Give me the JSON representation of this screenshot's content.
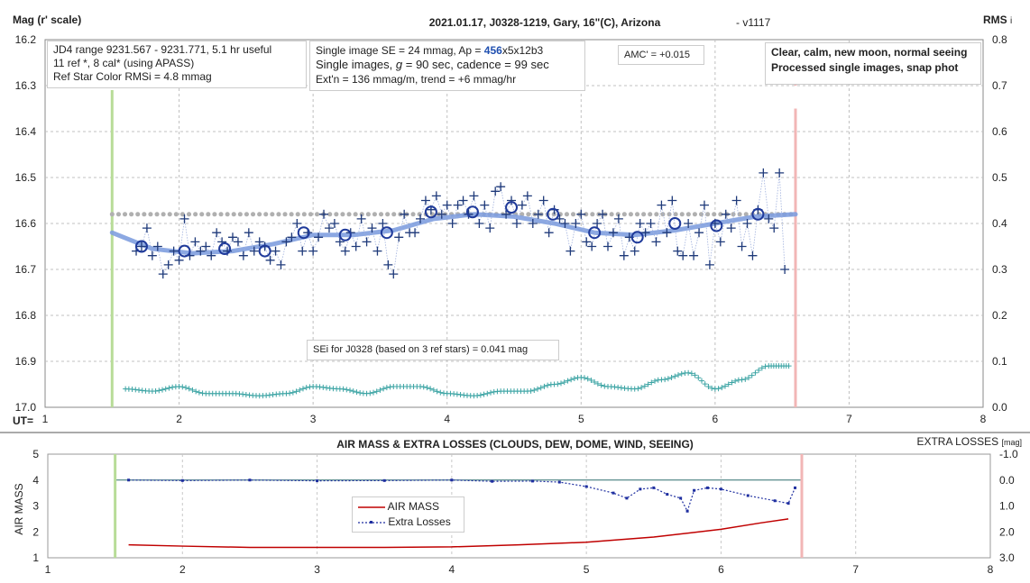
{
  "chart_data": [
    {
      "type": "scatter",
      "title": "2021.01.17, J0328-1219, Gary, 16\"(C), Arizona",
      "version": "- v1117",
      "ylabel": "Mag (r' scale)",
      "y2label": "RMS",
      "y2label_sub": "i",
      "xlabel": "UT=",
      "xlim": [
        1,
        8
      ],
      "ylim": [
        16.2,
        17.0
      ],
      "y2lim": [
        0.0,
        0.8
      ],
      "xticks": [
        "1",
        "2",
        "3",
        "4",
        "5",
        "6",
        "7",
        "8"
      ],
      "yticks": [
        "16.2",
        "16.3",
        "16.4",
        "16.5",
        "16.6",
        "16.7",
        "16.8",
        "16.9",
        "17.0"
      ],
      "y2ticks": [
        "0.8",
        "0.7",
        "0.6",
        "0.5",
        "0.4",
        "0.3",
        "0.2",
        "0.1",
        "0.0"
      ],
      "grid": true,
      "colors": {
        "single": "#1f3a7a",
        "group": "#1f3a9a",
        "smooth": "#7f9fdf",
        "mean": "#b0b0b0",
        "rms": "#3aa3a3",
        "start": "#b8dc98",
        "end": "#f2b6b6"
      },
      "start_marker": 1.5,
      "end_marker": 6.6,
      "mean_mag": 16.58,
      "mean_x": [
        1.5,
        6.6
      ],
      "series": [
        {
          "kind": "single_images",
          "x": [
            1.68,
            1.72,
            1.76,
            1.8,
            1.84,
            1.88,
            1.92,
            1.96,
            2.0,
            2.04,
            2.08,
            2.12,
            2.16,
            2.2,
            2.24,
            2.28,
            2.32,
            2.36,
            2.4,
            2.44,
            2.48,
            2.52,
            2.56,
            2.6,
            2.64,
            2.68,
            2.72,
            2.76,
            2.8,
            2.84,
            2.88,
            2.92,
            2.96,
            3.0,
            3.04,
            3.08,
            3.12,
            3.16,
            3.2,
            3.24,
            3.28,
            3.32,
            3.36,
            3.4,
            3.44,
            3.48,
            3.52,
            3.56,
            3.6,
            3.64,
            3.68,
            3.72,
            3.76,
            3.8,
            3.84,
            3.88,
            3.92,
            3.96,
            4.0,
            4.04,
            4.08,
            4.12,
            4.16,
            4.2,
            4.24,
            4.28,
            4.32,
            4.36,
            4.4,
            4.44,
            4.48,
            4.52,
            4.56,
            4.6,
            4.64,
            4.68,
            4.72,
            4.76,
            4.8,
            4.84,
            4.88,
            4.92,
            4.96,
            5.0,
            5.04,
            5.08,
            5.12,
            5.16,
            5.2,
            5.24,
            5.28,
            5.32,
            5.36,
            5.4,
            5.44,
            5.48,
            5.52,
            5.56,
            5.6,
            5.64,
            5.68,
            5.72,
            5.76,
            5.8,
            5.84,
            5.88,
            5.92,
            5.96,
            6.0,
            6.04,
            6.08,
            6.12,
            6.16,
            6.2,
            6.24,
            6.28,
            6.32,
            6.36,
            6.4,
            6.44,
            6.48,
            6.52
          ],
          "y": [
            16.66,
            16.65,
            16.61,
            16.67,
            16.65,
            16.71,
            16.69,
            16.66,
            16.68,
            16.59,
            16.67,
            16.64,
            16.66,
            16.65,
            16.67,
            16.62,
            16.64,
            16.66,
            16.63,
            16.64,
            16.67,
            16.62,
            16.66,
            16.64,
            16.65,
            16.68,
            16.66,
            16.69,
            16.64,
            16.63,
            16.6,
            16.66,
            16.62,
            16.66,
            16.63,
            16.58,
            16.61,
            16.6,
            16.64,
            16.66,
            16.62,
            16.65,
            16.59,
            16.64,
            16.61,
            16.66,
            16.6,
            16.69,
            16.71,
            16.63,
            16.58,
            16.62,
            16.62,
            16.59,
            16.55,
            16.57,
            16.54,
            16.58,
            16.56,
            16.6,
            16.56,
            16.55,
            16.58,
            16.54,
            16.6,
            16.56,
            16.61,
            16.53,
            16.52,
            16.58,
            16.55,
            16.6,
            16.56,
            16.54,
            16.6,
            16.58,
            16.55,
            16.62,
            16.57,
            16.59,
            16.6,
            16.66,
            16.6,
            16.58,
            16.64,
            16.65,
            16.6,
            16.58,
            16.65,
            16.62,
            16.59,
            16.67,
            16.63,
            16.66,
            16.6,
            16.62,
            16.6,
            16.64,
            16.56,
            16.62,
            16.55,
            16.66,
            16.67,
            16.6,
            16.67,
            16.62,
            16.56,
            16.69,
            16.6,
            16.64,
            16.58,
            16.61,
            16.55,
            16.65,
            16.6,
            16.67,
            16.57,
            16.49,
            16.59,
            16.61,
            16.49,
            16.7
          ]
        },
        {
          "kind": "group_averages",
          "x": [
            1.72,
            2.04,
            2.34,
            2.64,
            2.93,
            3.24,
            3.55,
            3.88,
            4.19,
            4.48,
            4.79,
            5.1,
            5.42,
            5.7,
            6.01,
            6.32
          ],
          "y": [
            16.65,
            16.66,
            16.655,
            16.66,
            16.62,
            16.625,
            16.62,
            16.575,
            16.575,
            16.565,
            16.58,
            16.62,
            16.63,
            16.6,
            16.605,
            16.58
          ]
        },
        {
          "kind": "smooth_fit",
          "x": [
            1.5,
            1.8,
            2.1,
            2.4,
            2.7,
            3.0,
            3.3,
            3.6,
            3.9,
            4.2,
            4.5,
            4.8,
            5.1,
            5.4,
            5.7,
            6.0,
            6.3,
            6.6
          ],
          "y": [
            16.62,
            16.655,
            16.665,
            16.66,
            16.645,
            16.625,
            16.625,
            16.615,
            16.59,
            16.58,
            16.585,
            16.6,
            16.62,
            16.625,
            16.615,
            16.6,
            16.585,
            16.58
          ]
        },
        {
          "kind": "rms",
          "x": [
            1.6,
            1.8,
            2.0,
            2.2,
            2.4,
            2.6,
            2.8,
            3.0,
            3.2,
            3.4,
            3.6,
            3.8,
            4.0,
            4.2,
            4.4,
            4.6,
            4.8,
            5.0,
            5.2,
            5.4,
            5.6,
            5.8,
            6.0,
            6.2,
            6.4,
            6.55
          ],
          "y": [
            0.04,
            0.035,
            0.045,
            0.03,
            0.03,
            0.025,
            0.03,
            0.045,
            0.04,
            0.03,
            0.045,
            0.045,
            0.03,
            0.025,
            0.035,
            0.035,
            0.05,
            0.065,
            0.045,
            0.04,
            0.06,
            0.075,
            0.04,
            0.06,
            0.09,
            0.09
          ]
        }
      ]
    },
    {
      "type": "line",
      "title": "AIR MASS & EXTRA LOSSES (CLOUDS, DEW, DOME, WIND, SEEING)",
      "ylabel": "AIR MASS",
      "y2label": "EXTRA LOSSES",
      "y2unit": "[mag]",
      "xlim": [
        1,
        8
      ],
      "ylim": [
        1,
        5
      ],
      "y2lim": [
        -1.0,
        3.0
      ],
      "xticks": [
        "1",
        "2",
        "3",
        "4",
        "5",
        "6",
        "7",
        "8"
      ],
      "yticks": [
        "5",
        "4",
        "3",
        "2",
        "1"
      ],
      "y2ticks": [
        "-1.0",
        "0.0",
        "1.0",
        "2.0",
        "3.0"
      ],
      "legend_position": "center",
      "series": [
        {
          "name": "AIR MASS",
          "color": "#c00000",
          "x": [
            1.6,
            2.0,
            2.5,
            3.0,
            3.5,
            4.0,
            4.5,
            5.0,
            5.5,
            6.0,
            6.3,
            6.5
          ],
          "y": [
            1.5,
            1.45,
            1.4,
            1.4,
            1.4,
            1.42,
            1.5,
            1.6,
            1.8,
            2.1,
            2.35,
            2.5
          ]
        },
        {
          "name": "Extra Losses",
          "color": "#1f2fa0",
          "x": [
            1.6,
            2.0,
            2.5,
            3.0,
            3.5,
            4.0,
            4.3,
            4.6,
            4.8,
            5.0,
            5.2,
            5.3,
            5.4,
            5.5,
            5.6,
            5.7,
            5.75,
            5.8,
            5.9,
            6.0,
            6.2,
            6.4,
            6.5,
            6.55
          ],
          "y": [
            0.0,
            0.02,
            0.0,
            0.03,
            0.02,
            0.0,
            0.05,
            0.04,
            0.08,
            0.25,
            0.5,
            0.7,
            0.35,
            0.3,
            0.55,
            0.7,
            1.2,
            0.4,
            0.3,
            0.35,
            0.6,
            0.8,
            0.9,
            0.3
          ]
        }
      ]
    }
  ],
  "notes": {
    "box1": [
      "JD4 range 9231.567 - 9231.771, 5.1 hr useful",
      " 11 ref *, 8 cal* (using APASS)",
      "Ref Star Color RMSi = 4.8 mmag"
    ],
    "box2_l1_pre": "Single image SE = 24 mmag, Ap = ",
    "box2_l1_ap": "456",
    "box2_l1_post": "x5x12b3",
    "box2_l2_pre": "Single images, ",
    "box2_l2_g": "g",
    "box2_l2_post": " = 90 sec, cadence = 99 sec",
    "box2_l3": "Ext'n = 136 mmag/m, trend = +6 mmag/hr",
    "amc": "AMC' = +0.015",
    "box4": [
      "Clear, calm, new moon, normal seeing",
      "Processed single images, snap phot"
    ],
    "sei": "SEi for J0328 (based on 3 ref stars) = 0.041 mag"
  }
}
